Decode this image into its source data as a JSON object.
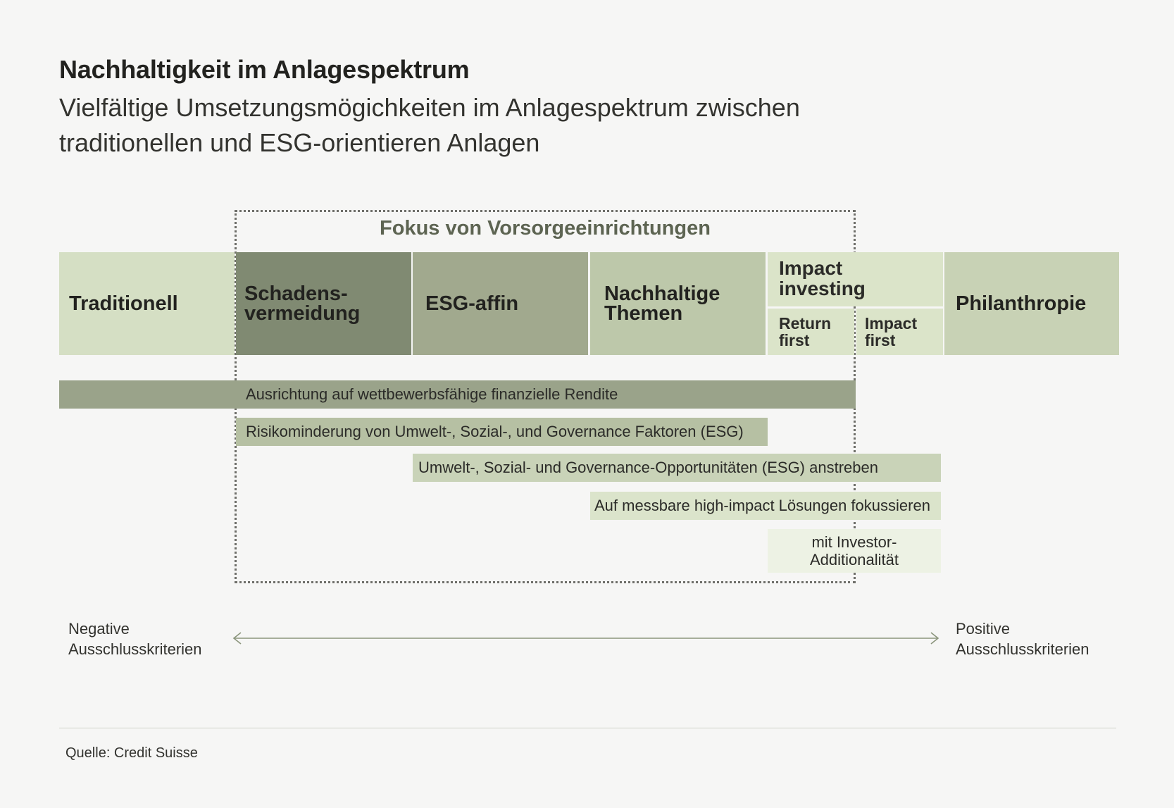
{
  "title": "Nachhaltigkeit im Anlagespektrum",
  "subtitle": "Vielfältige Umsetzungsmögichkeiten im Anlagespektrum zwischen traditionellen und ESG-orientieren Anlagen",
  "focus_label": "Fokus von Vorsorgeeinrichtungen",
  "categories": [
    {
      "label": "Traditionell",
      "color": "#d5dfc4"
    },
    {
      "label": "Schadens-\nvermeidung",
      "color": "#808a72"
    },
    {
      "label": "ESG-affin",
      "color": "#a1a98e"
    },
    {
      "label": "Nachhaltige\nThemen",
      "color": "#bdc8aa"
    },
    {
      "label": "Impact\ninvesting",
      "color": "#dbe4c9",
      "sub": [
        "Return\nfirst",
        "Impact\nfirst"
      ]
    },
    {
      "label": "Philanthropie",
      "color": "#c8d2b5"
    }
  ],
  "bars": [
    {
      "label": "Ausrichtung auf wettbewerbsfähige finanzielle Rendite",
      "color": "#9aa38a"
    },
    {
      "label": "Risikominderung von Umwelt-, Sozial-, und Governance Faktoren (ESG)",
      "color": "#b6c0a3"
    },
    {
      "label": "Umwelt-, Sozial- und Governance-Opportunitäten (ESG) anstreben",
      "color": "#c9d3b8"
    },
    {
      "label": "Auf messbare high-impact Lösungen fokussieren",
      "color": "#dbe4cb"
    },
    {
      "label": "mit Investor-\nAdditionalität",
      "color": "#edf2e4"
    }
  ],
  "axis": {
    "left_label": "Negative\nAusschlusskriterien",
    "right_label": "Positive\nAusschlusskriterien",
    "arrow_color": "#8b957c"
  },
  "source": "Quelle: Credit Suisse"
}
